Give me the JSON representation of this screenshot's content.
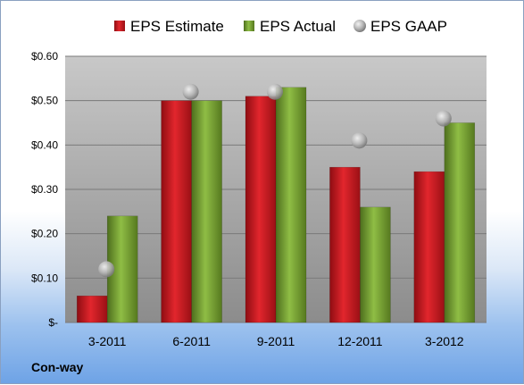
{
  "chart_data": {
    "type": "bar",
    "categories": [
      "3-2011",
      "6-2011",
      "9-2011",
      "12-2011",
      "3-2012"
    ],
    "series": [
      {
        "name": "EPS Estimate",
        "kind": "bar",
        "color": "#c0141a",
        "values": [
          0.06,
          0.5,
          0.51,
          0.35,
          0.34
        ]
      },
      {
        "name": "EPS Actual",
        "kind": "bar",
        "color": "#6f9a2e",
        "values": [
          0.24,
          0.5,
          0.53,
          0.26,
          0.45
        ]
      },
      {
        "name": "EPS GAAP",
        "kind": "marker",
        "color": "#b4b4b4",
        "values": [
          0.12,
          0.52,
          0.52,
          0.41,
          0.46
        ]
      }
    ],
    "ylim": [
      0,
      0.6
    ],
    "yticks": [
      0,
      0.1,
      0.2,
      0.3,
      0.4,
      0.5,
      0.6
    ],
    "ytick_labels": [
      "$-",
      "$0.10",
      "$0.20",
      "$0.30",
      "$0.40",
      "$0.50",
      "$0.60"
    ],
    "grid": true,
    "legend": "top"
  },
  "company": "Con-way"
}
